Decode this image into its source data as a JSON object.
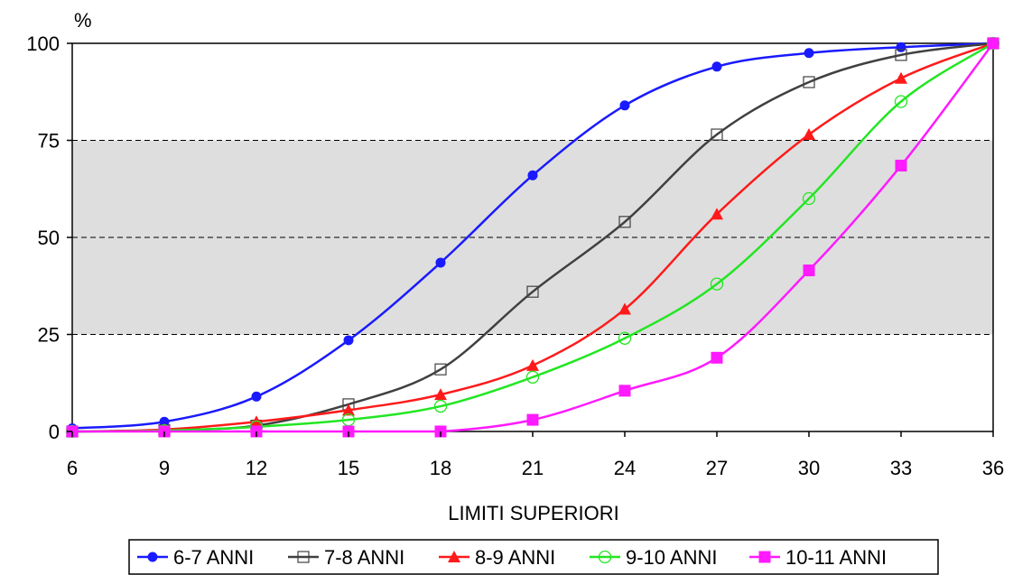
{
  "chart_data": {
    "type": "line",
    "ylabel": "%",
    "xlabel": "LIMITI SUPERIORI",
    "x": [
      6,
      9,
      12,
      15,
      18,
      21,
      24,
      27,
      30,
      33,
      36
    ],
    "xlim": [
      6,
      36
    ],
    "ylim": [
      0,
      100
    ],
    "y_ticks": [
      0,
      25,
      50,
      75,
      100
    ],
    "shaded_band": [
      25,
      75
    ],
    "grid": "dashed horizontal lines at 25, 50, 75",
    "legend_position": "bottom",
    "series": [
      {
        "name": "6-7 ANNI",
        "color": "#1a1aff",
        "marker": "circle-filled",
        "values": [
          0.8,
          2.5,
          9,
          23.5,
          43.5,
          66,
          84,
          94,
          97.5,
          99,
          100
        ]
      },
      {
        "name": "7-8 ANNI",
        "color": "#404040",
        "marker": "square-open",
        "values": [
          0,
          0.3,
          1.5,
          7,
          16,
          36,
          54,
          76.5,
          90,
          97,
          100
        ]
      },
      {
        "name": "8-9 ANNI",
        "color": "#ff1a1a",
        "marker": "triangle-filled",
        "values": [
          0,
          0.5,
          2.5,
          5.5,
          9.5,
          17,
          31.5,
          56,
          76.5,
          91,
          100
        ]
      },
      {
        "name": "9-10 ANNI",
        "color": "#22e622",
        "marker": "circle-open",
        "values": [
          0,
          0.2,
          1.2,
          3,
          6.5,
          14,
          24,
          38,
          60,
          85,
          100
        ]
      },
      {
        "name": "10-11 ANNI",
        "color": "#ff1aff",
        "marker": "square-filled",
        "values": [
          0,
          0,
          0,
          0,
          0,
          3,
          10.5,
          19,
          41.5,
          68.5,
          100
        ]
      }
    ]
  }
}
